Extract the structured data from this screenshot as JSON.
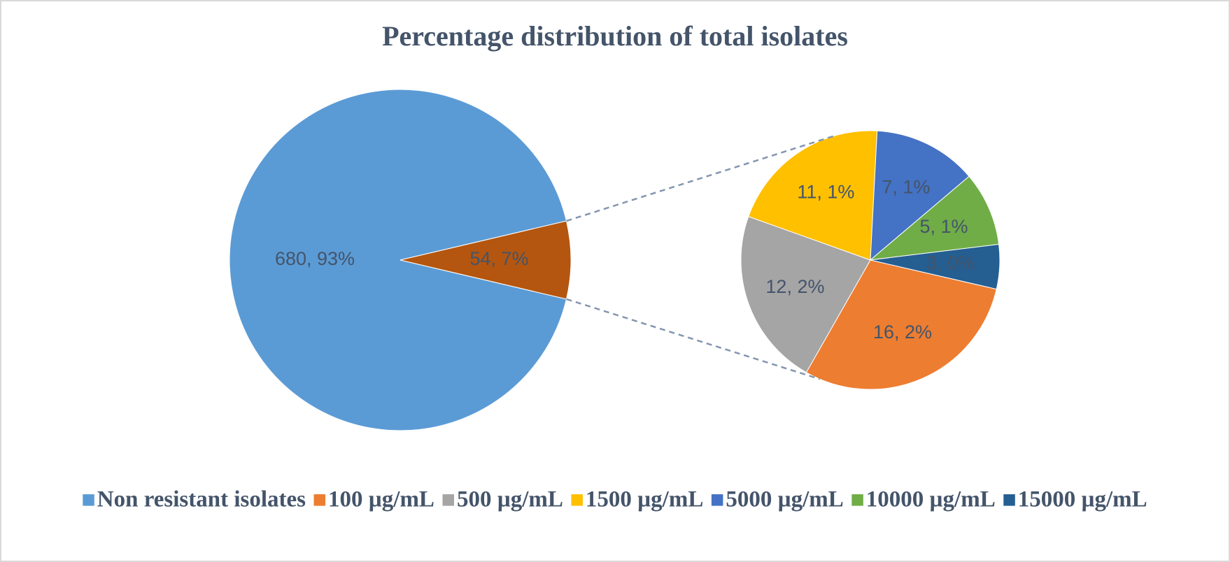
{
  "chart_data": {
    "type": "pie_of_pie",
    "title": "Percentage distribution of total isolates",
    "categories": [
      "Non resistant isolates",
      "100 µg/mL",
      "500 µg/mL",
      "1500 µg/mL",
      "5000 µg/mL",
      "10000 µg/mL",
      "15000 µg/mL"
    ],
    "values": [
      680,
      16,
      12,
      11,
      7,
      5,
      3
    ],
    "value_labels": [
      "680, 93%",
      "16, 2%",
      "12, 2%",
      "11, 1%",
      "7, 1%",
      "5, 1%",
      "3, 0%"
    ],
    "colors": [
      "#5b9bd5",
      "#ed7d31",
      "#a5a5a5",
      "#ffc000",
      "#4472c4",
      "#70ad47",
      "#255e91"
    ],
    "other": {
      "value": 54,
      "value_label": "54, 7%",
      "color": "#b4560f"
    },
    "legend": "bottom"
  }
}
